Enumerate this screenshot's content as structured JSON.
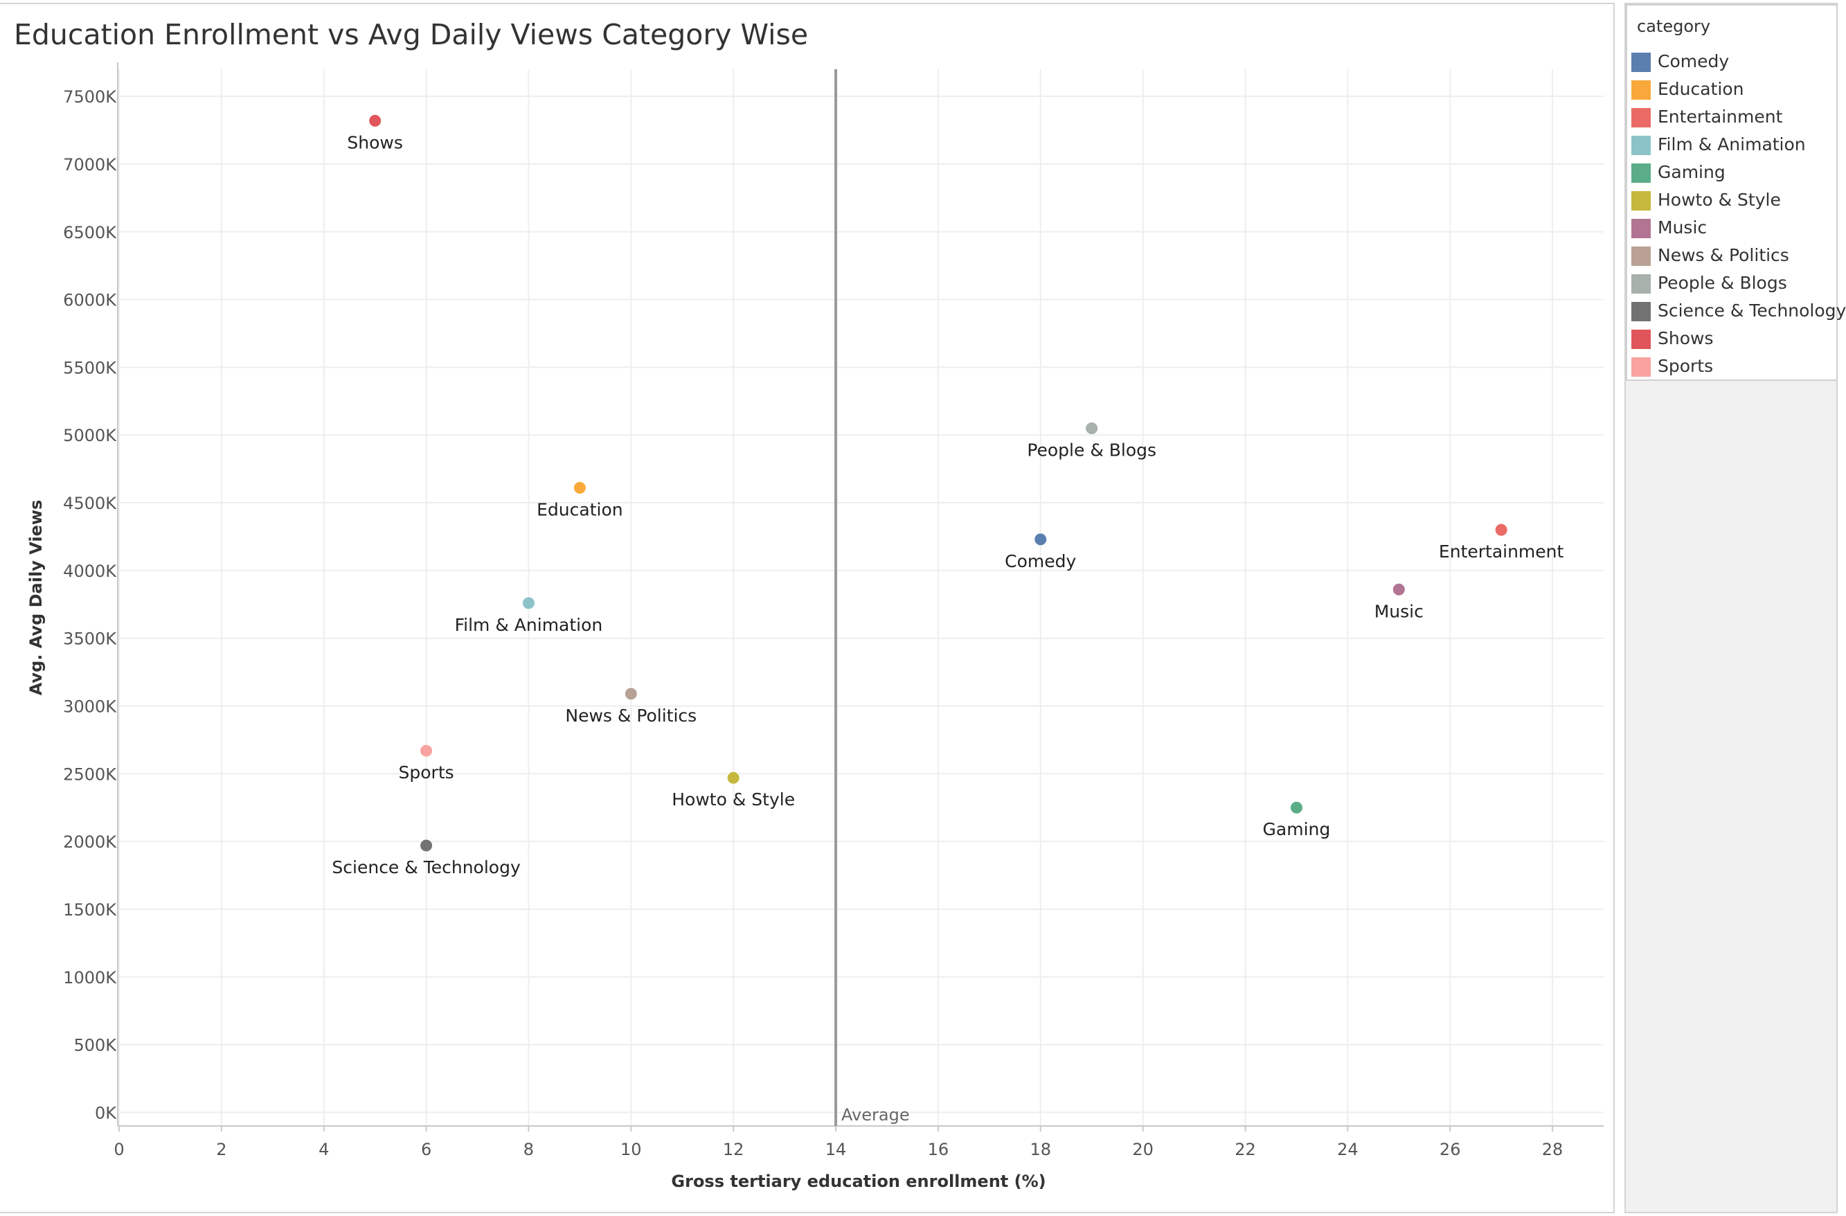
{
  "chart_data": {
    "type": "scatter",
    "title": "Education Enrollment vs Avg Daily Views Category Wise",
    "xlabel": "Gross tertiary education enrollment (%)",
    "ylabel": "Avg. Avg Daily Views",
    "xlim": [
      0,
      29
    ],
    "ylim": [
      -100000,
      7700000
    ],
    "x_ticks": [
      0,
      2,
      4,
      6,
      8,
      10,
      12,
      14,
      16,
      18,
      20,
      22,
      24,
      26,
      28
    ],
    "y_ticks": [
      0,
      500000,
      1000000,
      1500000,
      2000000,
      2500000,
      3000000,
      3500000,
      4000000,
      4500000,
      5000000,
      5500000,
      6000000,
      6500000,
      7000000,
      7500000
    ],
    "y_tick_labels": [
      "0K",
      "500K",
      "1000K",
      "1500K",
      "2000K",
      "2500K",
      "3000K",
      "3500K",
      "4000K",
      "4500K",
      "5000K",
      "5500K",
      "6000K",
      "6500K",
      "7000K",
      "7500K"
    ],
    "grid": true,
    "legend_position": "right",
    "legend_title": "category",
    "reference_line": {
      "axis": "x",
      "value": 14,
      "label": "Average"
    },
    "points": [
      {
        "category": "Comedy",
        "x": 18,
        "y": 4230000,
        "color": "#5b7faf"
      },
      {
        "category": "Education",
        "x": 9,
        "y": 4610000,
        "color": "#f9a93b"
      },
      {
        "category": "Entertainment",
        "x": 27,
        "y": 4300000,
        "color": "#ea6b66"
      },
      {
        "category": "Film & Animation",
        "x": 8,
        "y": 3760000,
        "color": "#8cc3c9"
      },
      {
        "category": "Gaming",
        "x": 23,
        "y": 2250000,
        "color": "#5aad86"
      },
      {
        "category": "Howto & Style",
        "x": 12,
        "y": 2470000,
        "color": "#c5b83d"
      },
      {
        "category": "Music",
        "x": 25,
        "y": 3860000,
        "color": "#b27493"
      },
      {
        "category": "News & Politics",
        "x": 10,
        "y": 3090000,
        "color": "#b9a195"
      },
      {
        "category": "People & Blogs",
        "x": 19,
        "y": 5050000,
        "color": "#a8b1aa"
      },
      {
        "category": "Science & Technology",
        "x": 6,
        "y": 1970000,
        "color": "#727272"
      },
      {
        "category": "Shows",
        "x": 5,
        "y": 7320000,
        "color": "#e0555a"
      },
      {
        "category": "Sports",
        "x": 6,
        "y": 2670000,
        "color": "#f8a3a0"
      }
    ]
  }
}
